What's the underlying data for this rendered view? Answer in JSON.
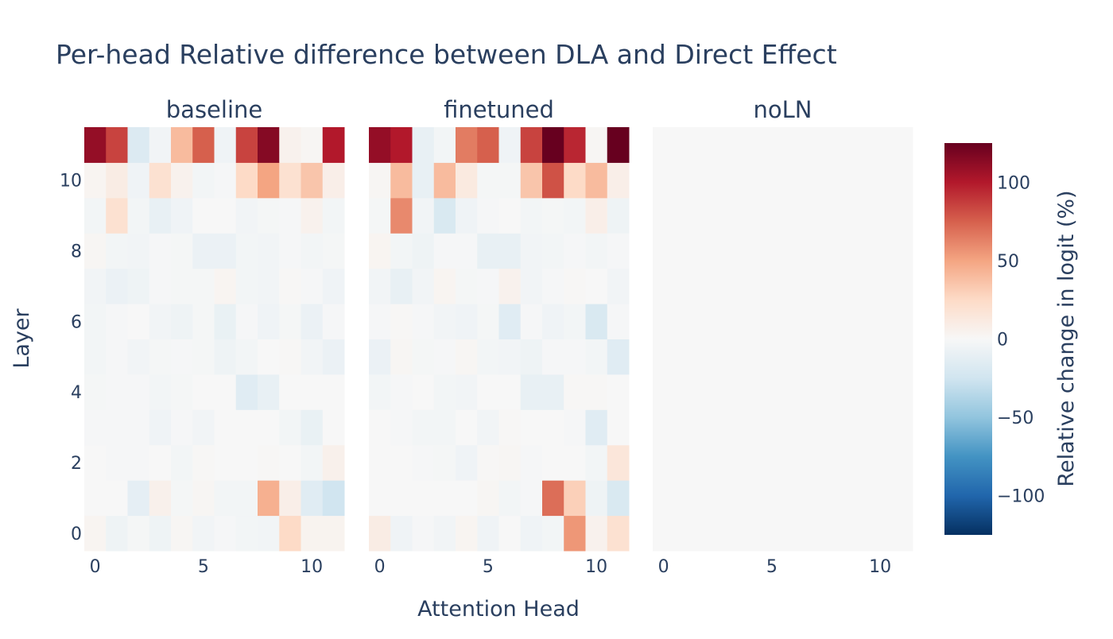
{
  "chart_data": {
    "type": "heatmap",
    "title": "Per-head Relative difference between DLA and Direct Effect",
    "xlabel": "Attention Head",
    "ylabel": "Layer",
    "x_ticks": [
      0,
      5,
      10
    ],
    "y_ticks": [
      0,
      2,
      4,
      6,
      8,
      10
    ],
    "x": [
      0,
      1,
      2,
      3,
      4,
      5,
      6,
      7,
      8,
      9,
      10,
      11
    ],
    "y": [
      0,
      1,
      2,
      3,
      4,
      5,
      6,
      7,
      8,
      9,
      10,
      11
    ],
    "zlim": [
      -125,
      125
    ],
    "colorscale": "RdBu (reversed)",
    "colorbar": {
      "title": "Relative change in logit (%)",
      "ticks": [
        100,
        50,
        0,
        -50,
        -100
      ],
      "tick_labels": [
        "100",
        "50",
        "0",
        "−50",
        "−100"
      ]
    },
    "panels": [
      {
        "name": "baseline",
        "z": [
          [
            3,
            -6,
            -2,
            -6,
            2,
            -4,
            -1,
            -3,
            -4,
            25,
            4,
            4
          ],
          [
            0,
            0,
            -12,
            6,
            -2,
            2,
            -3,
            -3,
            45,
            8,
            -15,
            -25
          ],
          [
            0,
            -1,
            -1,
            0,
            -3,
            1,
            0,
            0,
            1,
            0,
            -3,
            6
          ],
          [
            -1,
            -1,
            -1,
            -5,
            -1,
            -4,
            0,
            0,
            0,
            -3,
            -9,
            0
          ],
          [
            -2,
            -1,
            -1,
            -3,
            -2,
            0,
            0,
            -15,
            -10,
            0,
            0,
            0
          ],
          [
            -3,
            -1,
            -4,
            -2,
            -1,
            -2,
            -6,
            -3,
            0,
            1,
            -4,
            -8
          ],
          [
            -3,
            -1,
            0,
            -4,
            -6,
            -2,
            -9,
            -1,
            -5,
            -2,
            -8,
            -1
          ],
          [
            -4,
            -8,
            -6,
            -1,
            -2,
            -2,
            3,
            -3,
            -4,
            1,
            -1,
            -5
          ],
          [
            2,
            -3,
            -4,
            -1,
            -2,
            -8,
            -8,
            -3,
            -4,
            -1,
            -3,
            -2
          ],
          [
            -3,
            20,
            -3,
            -10,
            -5,
            0,
            0,
            -4,
            -2,
            -1,
            5,
            -3
          ],
          [
            3,
            10,
            -5,
            20,
            5,
            -3,
            -1,
            25,
            50,
            20,
            35,
            8
          ],
          [
            110,
            85,
            -18,
            -4,
            40,
            75,
            -5,
            85,
            115,
            5,
            2,
            100
          ]
        ]
      },
      {
        "name": "finetuned",
        "z": [
          [
            10,
            -5,
            -1,
            -4,
            3,
            -5,
            0,
            -5,
            -3,
            55,
            5,
            20
          ],
          [
            0,
            0,
            0,
            0,
            0,
            2,
            -3,
            -1,
            70,
            30,
            -6,
            -20
          ],
          [
            0,
            0,
            -1,
            -2,
            -5,
            1,
            2,
            -1,
            0,
            0,
            -3,
            15
          ],
          [
            0,
            -1,
            -3,
            -3,
            0,
            -4,
            1,
            0,
            0,
            -1,
            -15,
            0
          ],
          [
            -3,
            -1,
            0,
            -3,
            -4,
            0,
            0,
            -10,
            -10,
            1,
            1,
            0
          ],
          [
            -8,
            2,
            -2,
            -1,
            2,
            -3,
            -4,
            -6,
            -1,
            -1,
            -3,
            -15
          ],
          [
            -1,
            1,
            -1,
            -4,
            -5,
            -2,
            -15,
            -1,
            -5,
            -3,
            -20,
            -1
          ],
          [
            -4,
            -10,
            -4,
            3,
            -2,
            -1,
            5,
            -4,
            -1,
            1,
            0,
            -4
          ],
          [
            3,
            -3,
            -6,
            -1,
            -1,
            -10,
            -10,
            -4,
            -3,
            -1,
            -3,
            -1
          ],
          [
            -2,
            60,
            -4,
            -20,
            -5,
            -1,
            0,
            -3,
            -2,
            -3,
            8,
            -6
          ],
          [
            2,
            40,
            -10,
            40,
            12,
            -2,
            -2,
            35,
            80,
            25,
            40,
            8
          ],
          [
            110,
            100,
            -10,
            -3,
            65,
            75,
            -5,
            85,
            125,
            95,
            2,
            125
          ]
        ]
      },
      {
        "name": "noLN",
        "z": [
          [
            0,
            0,
            0,
            0,
            0,
            0,
            0,
            0,
            0,
            0,
            0,
            0
          ],
          [
            0,
            0,
            0,
            0,
            0,
            0,
            0,
            0,
            0,
            0,
            0,
            0
          ],
          [
            0,
            0,
            0,
            0,
            0,
            0,
            0,
            0,
            0,
            0,
            0,
            0
          ],
          [
            0,
            0,
            0,
            0,
            0,
            0,
            0,
            0,
            0,
            0,
            0,
            0
          ],
          [
            0,
            0,
            0,
            0,
            0,
            0,
            0,
            0,
            0,
            0,
            0,
            0
          ],
          [
            0,
            0,
            0,
            0,
            0,
            0,
            0,
            0,
            0,
            0,
            0,
            0
          ],
          [
            0,
            0,
            0,
            0,
            0,
            0,
            0,
            0,
            0,
            0,
            0,
            0
          ],
          [
            0,
            0,
            0,
            0,
            0,
            0,
            0,
            0,
            0,
            0,
            0,
            0
          ],
          [
            0,
            0,
            0,
            0,
            0,
            0,
            0,
            0,
            0,
            0,
            0,
            0
          ],
          [
            0,
            0,
            0,
            0,
            0,
            0,
            0,
            0,
            0,
            0,
            0,
            0
          ],
          [
            0,
            0,
            0,
            0,
            0,
            0,
            0,
            0,
            0,
            0,
            0,
            0
          ],
          [
            0,
            0,
            0,
            0,
            0,
            0,
            0,
            0,
            0,
            0,
            0,
            0
          ]
        ]
      }
    ]
  }
}
